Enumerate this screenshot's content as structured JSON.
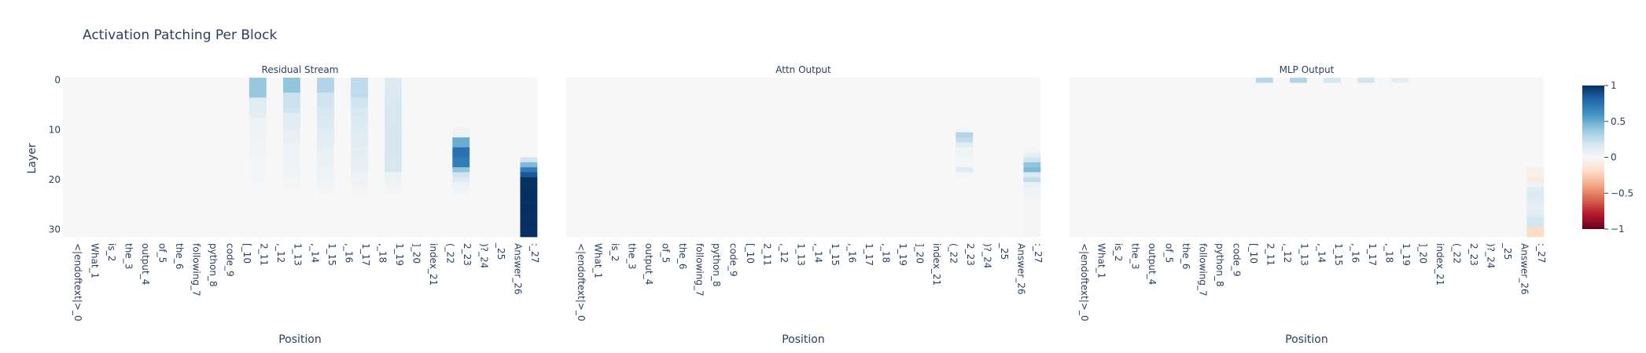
{
  "chart_data": {
    "type": "heatmap",
    "title": "Activation Patching Per Block",
    "ylabel": "Layer",
    "xlabel": "Position",
    "y_ticks": [
      0,
      10,
      20,
      30
    ],
    "n_layers": 32,
    "colorscale": {
      "name": "RdBu",
      "zmin": -1,
      "zmax": 1,
      "tick_values": [
        1,
        0.5,
        0,
        -0.5,
        -1
      ],
      "tick_labels": [
        "1",
        "0.5",
        "0",
        "−0.5",
        "−1"
      ]
    },
    "positions": [
      "<|endoftext|>_0",
      "What_1",
      "is_2",
      "the_3",
      "output_4",
      "of_5",
      "the_6",
      "following_7",
      "python_8",
      "code_9",
      "[_10",
      "2_11",
      ",_12",
      "1_13",
      ",_14",
      "1_15",
      ",_16",
      "1_17",
      ",_18",
      "1_19",
      "]_20",
      "index_21",
      "(_22",
      "2_23",
      ")?_24",
      "_25",
      "Answer_26",
      ":_27"
    ],
    "panels": [
      {
        "title": "Residual Stream",
        "columns": [
          {
            "position": 11,
            "values": [
              0.38,
              0.38,
              0.38,
              0.38,
              0.12,
              0.12,
              0.12,
              0.1,
              0.06,
              0.06,
              0.06,
              0.05,
              0.03,
              0.03,
              0.03,
              0.03,
              0.02,
              0.02,
              0.02,
              0.02,
              0.01,
              0.01,
              0.01,
              0.01,
              0,
              0,
              0,
              0,
              0,
              0,
              0,
              0
            ]
          },
          {
            "position": 13,
            "values": [
              0.4,
              0.4,
              0.4,
              0.22,
              0.22,
              0.22,
              0.2,
              0.12,
              0.12,
              0.12,
              0.1,
              0.08,
              0.08,
              0.06,
              0.06,
              0.06,
              0.04,
              0.04,
              0.04,
              0.03,
              0.02,
              0.02,
              0.01,
              0.01,
              0,
              0,
              0,
              0,
              0,
              0,
              0,
              0
            ]
          },
          {
            "position": 15,
            "values": [
              0.3,
              0.3,
              0.3,
              0.2,
              0.2,
              0.2,
              0.17,
              0.17,
              0.15,
              0.15,
              0.12,
              0.12,
              0.1,
              0.1,
              0.08,
              0.08,
              0.07,
              0.07,
              0.06,
              0.05,
              0.04,
              0.03,
              0.02,
              0.01,
              0,
              0,
              0,
              0,
              0,
              0,
              0,
              0
            ]
          },
          {
            "position": 17,
            "values": [
              0.26,
              0.26,
              0.26,
              0.26,
              0.2,
              0.2,
              0.16,
              0.16,
              0.14,
              0.14,
              0.12,
              0.12,
              0.11,
              0.11,
              0.1,
              0.1,
              0.09,
              0.09,
              0.08,
              0.06,
              0.05,
              0.04,
              0.02,
              0.01,
              0,
              0,
              0,
              0,
              0,
              0,
              0,
              0
            ]
          },
          {
            "position": 19,
            "values": [
              0.14,
              0.14,
              0.15,
              0.15,
              0.16,
              0.16,
              0.17,
              0.17,
              0.17,
              0.17,
              0.18,
              0.18,
              0.18,
              0.18,
              0.18,
              0.18,
              0.17,
              0.17,
              0.17,
              0.06,
              0.04,
              0.03,
              0.02,
              0.01,
              0,
              0,
              0,
              0,
              0,
              0,
              0,
              0
            ]
          },
          {
            "position": 23,
            "values": [
              0,
              0,
              0,
              0,
              0,
              0,
              0,
              0,
              0,
              0,
              0.04,
              0.05,
              0.5,
              0.5,
              0.75,
              0.75,
              0.7,
              0.7,
              0.4,
              0.2,
              0.12,
              0.06,
              0.03,
              0.01,
              0,
              0,
              0,
              0,
              0,
              0,
              0,
              0
            ]
          },
          {
            "position": 27,
            "values": [
              0,
              0,
              0,
              0,
              0,
              0,
              0,
              0,
              0,
              0,
              0,
              0,
              0,
              0,
              0,
              0,
              0.2,
              0.45,
              0.7,
              0.85,
              1,
              1,
              1,
              1,
              1,
              1,
              1,
              1,
              1,
              1,
              1,
              1
            ]
          }
        ]
      },
      {
        "title": "Attn Output",
        "columns": [
          {
            "position": 23,
            "values": [
              0,
              0,
              0,
              0,
              0,
              0,
              0,
              0,
              0,
              0,
              0.02,
              0.3,
              0.25,
              0.12,
              0.05,
              0.05,
              0.02,
              0.02,
              0.12,
              0.02,
              0,
              0,
              0,
              0,
              0,
              0,
              0,
              0,
              0,
              0,
              0,
              0
            ]
          },
          {
            "position": 27,
            "values": [
              0,
              0,
              0,
              0,
              0,
              0,
              0,
              0,
              0,
              0,
              0,
              0,
              0,
              0,
              0.02,
              0.08,
              0.2,
              0.4,
              0.45,
              0.15,
              0.25,
              0.08,
              0.05,
              0.03,
              0.02,
              0.02,
              0.02,
              0.02,
              0.02,
              0.02,
              0.02,
              0.02
            ]
          }
        ]
      },
      {
        "title": "MLP Output",
        "columns": [
          {
            "position": 11,
            "values": [
              0.28,
              0,
              0,
              0,
              0,
              0,
              0,
              0,
              0,
              0,
              0,
              0,
              0,
              0,
              0,
              0,
              0,
              0,
              0,
              0,
              0,
              0,
              0,
              0,
              0,
              0,
              0,
              0,
              0,
              0,
              0,
              0
            ]
          },
          {
            "position": 13,
            "values": [
              0.3,
              0,
              0,
              0,
              0,
              0,
              0,
              0,
              0,
              0,
              0,
              0,
              0,
              0,
              0,
              0,
              0,
              0,
              0,
              0,
              0,
              0,
              0,
              0,
              0,
              0,
              0,
              0,
              0,
              0,
              0,
              0
            ]
          },
          {
            "position": 15,
            "values": [
              0.18,
              0,
              0,
              0,
              0,
              0,
              0,
              0,
              0,
              0,
              0,
              0,
              0,
              0,
              0,
              0,
              0,
              0,
              0,
              0,
              0,
              0,
              0,
              0,
              0,
              0,
              0,
              0,
              0,
              0,
              0,
              0
            ]
          },
          {
            "position": 17,
            "values": [
              0.2,
              0,
              0,
              0,
              0,
              0,
              0,
              0,
              0,
              0,
              0,
              0,
              0,
              0,
              0,
              0,
              0,
              0,
              0,
              0,
              0,
              0,
              0,
              0,
              0,
              0,
              0,
              0,
              0,
              0,
              0,
              0
            ]
          },
          {
            "position": 19,
            "values": [
              0.1,
              0,
              0,
              0,
              0,
              0,
              0,
              0,
              0,
              0,
              0,
              0,
              0,
              0,
              0,
              0,
              0,
              0,
              0,
              0,
              0,
              0,
              0,
              0,
              0,
              0,
              0,
              0,
              0,
              0,
              0,
              0
            ]
          },
          {
            "position": 27,
            "values": [
              0,
              0,
              0,
              0,
              0,
              0,
              0,
              0,
              0,
              0,
              0,
              0,
              0,
              0,
              0,
              0,
              0,
              0,
              -0.05,
              -0.05,
              -0.1,
              0.05,
              0.12,
              0.15,
              0.12,
              0.1,
              0.1,
              0.12,
              0.18,
              0.2,
              -0.2,
              -0.2
            ]
          }
        ]
      }
    ]
  }
}
